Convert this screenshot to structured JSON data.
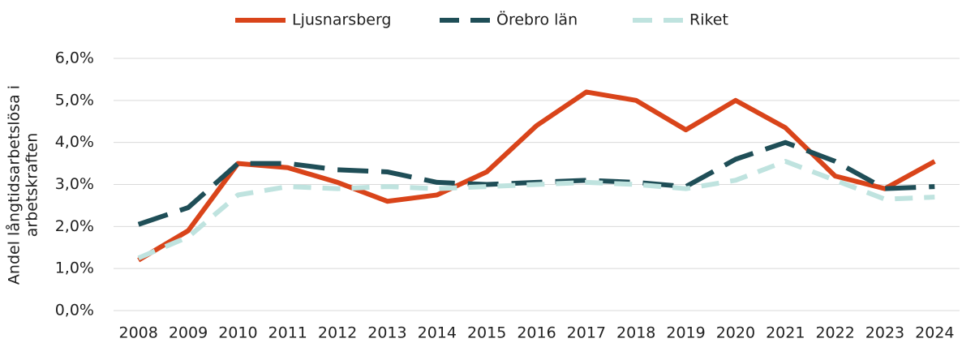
{
  "chart_data": {
    "type": "line",
    "ylabel": [
      "Andel långtidsarbetslösa i",
      "arbetskraften"
    ],
    "categories": [
      "2008",
      "2009",
      "2010",
      "2011",
      "2012",
      "2013",
      "2014",
      "2015",
      "2016",
      "2017",
      "2018",
      "2019",
      "2020",
      "2021",
      "2022",
      "2023",
      "2024"
    ],
    "series": [
      {
        "name": "Ljusnarsberg",
        "color": "#d9441a",
        "dash": "solid",
        "values": [
          1.2,
          1.9,
          3.5,
          3.4,
          3.05,
          2.6,
          2.75,
          3.3,
          4.4,
          5.2,
          5.0,
          4.3,
          5.0,
          4.35,
          3.2,
          2.9,
          3.55
        ]
      },
      {
        "name": "Örebro län",
        "color": "#1f4e57",
        "dash": "long",
        "values": [
          2.05,
          2.45,
          3.5,
          3.5,
          3.35,
          3.3,
          3.05,
          3.0,
          3.05,
          3.1,
          3.05,
          2.95,
          3.6,
          4.0,
          3.55,
          2.9,
          2.95
        ]
      },
      {
        "name": "Riket",
        "color": "#bfe3df",
        "dash": "short",
        "values": [
          1.25,
          1.75,
          2.75,
          2.95,
          2.9,
          2.95,
          2.9,
          2.95,
          3.0,
          3.05,
          3.0,
          2.9,
          3.1,
          3.55,
          3.1,
          2.65,
          2.7
        ]
      }
    ],
    "ylim": [
      0,
      6
    ],
    "yticks": [
      {
        "value": 0,
        "label": "0,0%"
      },
      {
        "value": 1,
        "label": "1,0%"
      },
      {
        "value": 2,
        "label": "2,0%"
      },
      {
        "value": 3,
        "label": "3,0%"
      },
      {
        "value": 4,
        "label": "4,0%"
      },
      {
        "value": 5,
        "label": "5,0%"
      },
      {
        "value": 6,
        "label": "6,0%"
      }
    ],
    "grid": true,
    "legend": "top"
  }
}
